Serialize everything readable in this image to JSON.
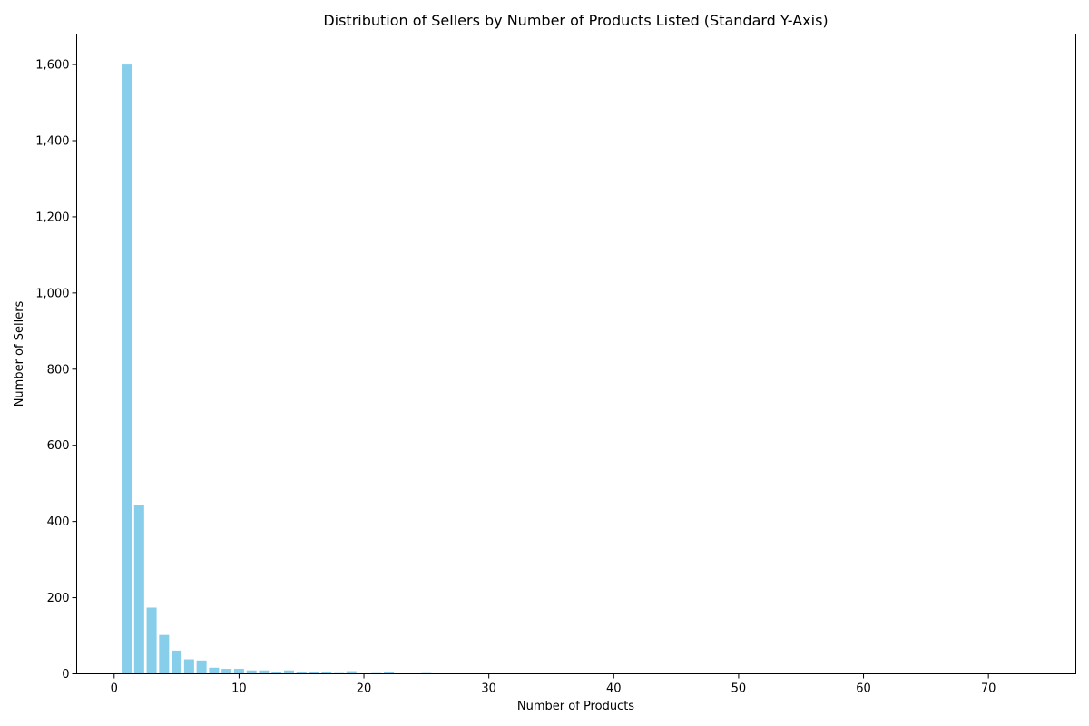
{
  "chart_data": {
    "type": "bar",
    "title": "Distribution of Sellers by Number of Products Listed (Standard Y-Axis)",
    "xlabel": "Number of Products",
    "ylabel": "Number of Sellers",
    "xlim": [
      -3,
      77
    ],
    "ylim": [
      0,
      1680
    ],
    "xticks": [
      0,
      10,
      20,
      30,
      40,
      50,
      60,
      70
    ],
    "yticks": [
      0,
      200,
      400,
      600,
      800,
      1000,
      1200,
      1400,
      1600
    ],
    "ytick_labels": [
      "0",
      "200",
      "400",
      "600",
      "800",
      "1,000",
      "1,200",
      "1,400",
      "1,600"
    ],
    "grid": false,
    "bar_color": "#87CEEB",
    "x": [
      1,
      2,
      3,
      4,
      5,
      6,
      7,
      8,
      9,
      10,
      11,
      12,
      13,
      14,
      15,
      16,
      17,
      18,
      19,
      21,
      22,
      24,
      25,
      33,
      36,
      44,
      52,
      63,
      73
    ],
    "values": [
      1600,
      443,
      174,
      102,
      61,
      38,
      35,
      16,
      13,
      13,
      9,
      9,
      4,
      9,
      6,
      4,
      4,
      2,
      7,
      2,
      4,
      1,
      2,
      1,
      1,
      1,
      1,
      1,
      1
    ]
  }
}
